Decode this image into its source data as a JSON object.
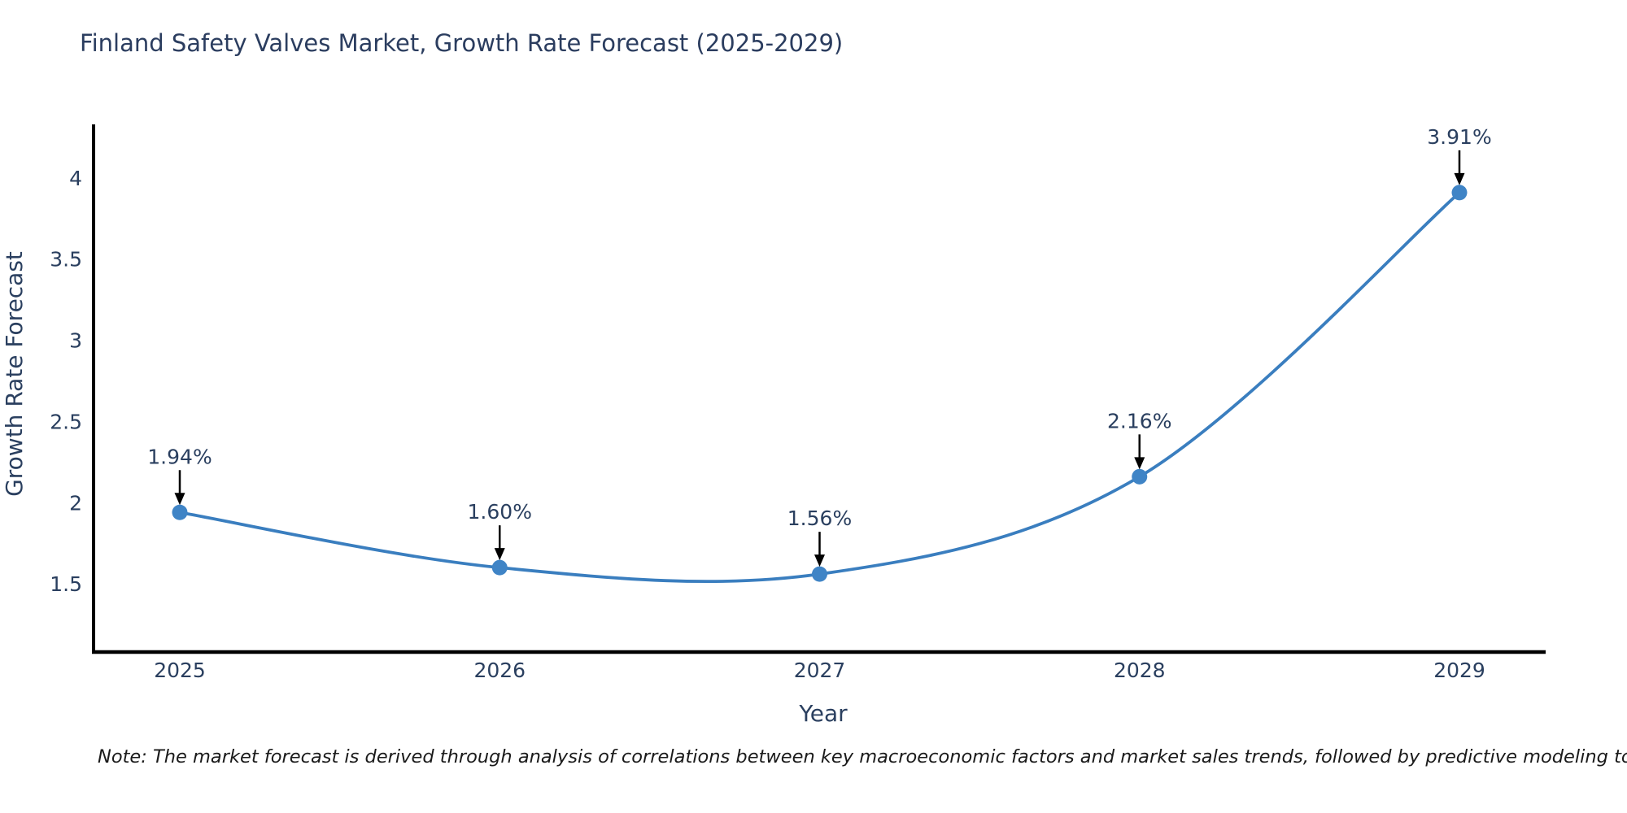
{
  "title": "Finland Safety Valves Market, Growth Rate Forecast (2025-2029)",
  "note": "Note: The market forecast is derived through analysis of correlations between key macroeconomic factors and market sales trends, followed by predictive modeling to project future sales",
  "chart_data": {
    "type": "line",
    "title": "Finland Safety Valves Market, Growth Rate Forecast (2025-2029)",
    "xlabel": "Year",
    "ylabel": "Growth Rate Forecast",
    "x": [
      2025,
      2026,
      2027,
      2028,
      2029
    ],
    "y": [
      1.94,
      1.6,
      1.56,
      2.16,
      3.91
    ],
    "point_labels": [
      "1.94%",
      "1.60%",
      "1.56%",
      "2.16%",
      "3.91%"
    ],
    "yticks": [
      1.5,
      2,
      2.5,
      3,
      3.5,
      4
    ],
    "ylim": [
      1.08,
      4.33
    ],
    "grid": false,
    "legend": "none",
    "colors": {
      "line": "#3a7ebf",
      "marker": "#3f84c6",
      "axis": "#000000",
      "tick_text": "#2a3f5f",
      "annotation_text": "#2a3f5f",
      "arrow": "#000000"
    }
  }
}
